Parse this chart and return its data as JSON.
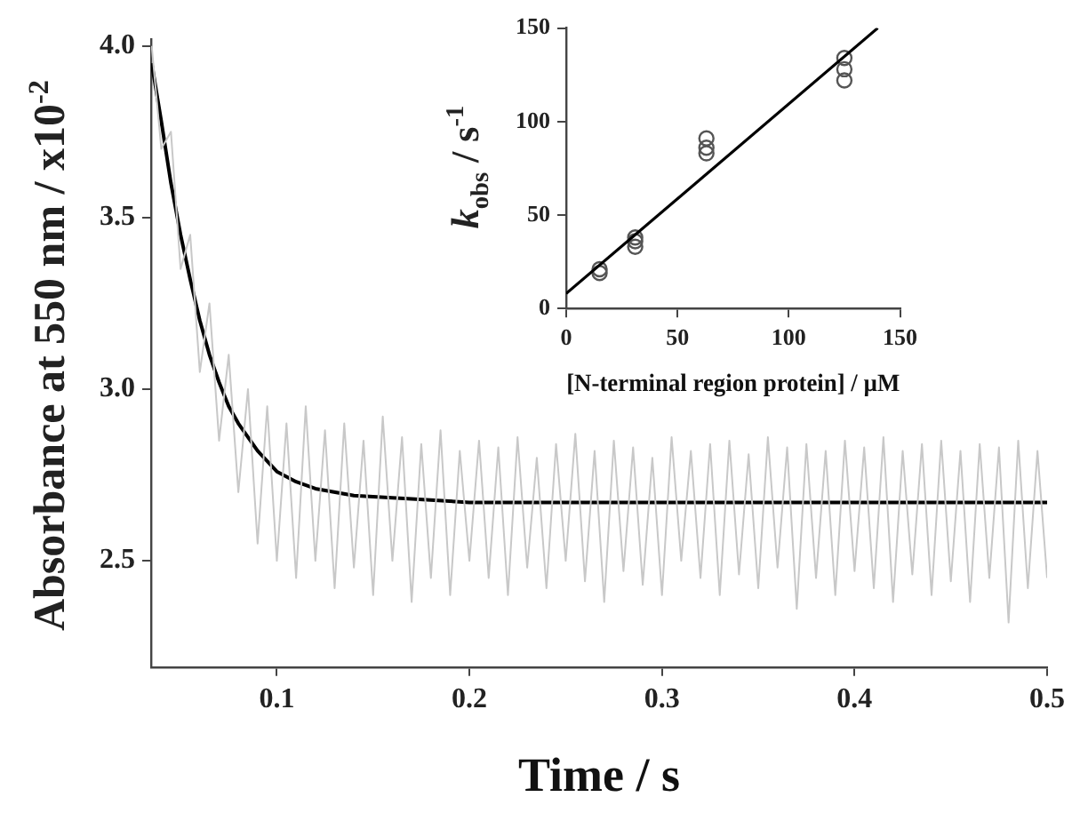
{
  "chart_data": [
    {
      "type": "line",
      "xlabel": "Time / s",
      "ylabel": "Absorbance at 550 nm / x10$^{-2}$",
      "xlim": [
        0.0347,
        0.5
      ],
      "xticks": [
        0.1,
        0.2,
        0.3,
        0.4,
        0.5
      ],
      "ylim": [
        2.19,
        4.02
      ],
      "yticks": [
        {
          "value": 2.5,
          "label": "2.5"
        },
        {
          "value": 3,
          "label": "3.0"
        },
        {
          "value": 3.5,
          "label": "3.5"
        },
        {
          "value": 4,
          "label": "4.0"
        }
      ],
      "grid": false,
      "legend": false,
      "marker": "none",
      "line_style": "solid",
      "series": [
        {
          "color": "#c8c8c8",
          "x": [
            0.035,
            0.04,
            0.045,
            0.05,
            0.055,
            0.06,
            0.065,
            0.07,
            0.075,
            0.08,
            0.085,
            0.09,
            0.095,
            0.1,
            0.105,
            0.11,
            0.115,
            0.12,
            0.125,
            0.13,
            0.135,
            0.14,
            0.145,
            0.15,
            0.155,
            0.16,
            0.165,
            0.17,
            0.175,
            0.18,
            0.185,
            0.19,
            0.195,
            0.2,
            0.205,
            0.21,
            0.215,
            0.22,
            0.225,
            0.23,
            0.235,
            0.24,
            0.245,
            0.25,
            0.255,
            0.26,
            0.265,
            0.27,
            0.275,
            0.28,
            0.285,
            0.29,
            0.295,
            0.3,
            0.305,
            0.31,
            0.315,
            0.32,
            0.325,
            0.33,
            0.335,
            0.34,
            0.345,
            0.35,
            0.355,
            0.36,
            0.365,
            0.37,
            0.375,
            0.38,
            0.385,
            0.39,
            0.395,
            0.4,
            0.405,
            0.41,
            0.415,
            0.42,
            0.425,
            0.43,
            0.435,
            0.44,
            0.445,
            0.45,
            0.455,
            0.46,
            0.465,
            0.47,
            0.475,
            0.48,
            0.485,
            0.49,
            0.495,
            0.5
          ],
          "values": [
            4.0,
            3.7,
            3.75,
            3.35,
            3.45,
            3.05,
            3.25,
            2.85,
            3.1,
            2.7,
            3.0,
            2.55,
            2.95,
            2.5,
            2.9,
            2.45,
            2.95,
            2.5,
            2.88,
            2.42,
            2.9,
            2.48,
            2.85,
            2.4,
            2.92,
            2.5,
            2.86,
            2.38,
            2.84,
            2.45,
            2.88,
            2.4,
            2.82,
            2.5,
            2.85,
            2.45,
            2.83,
            2.4,
            2.86,
            2.48,
            2.8,
            2.42,
            2.84,
            2.5,
            2.87,
            2.44,
            2.82,
            2.38,
            2.85,
            2.47,
            2.83,
            2.43,
            2.8,
            2.4,
            2.86,
            2.5,
            2.82,
            2.45,
            2.84,
            2.4,
            2.85,
            2.46,
            2.81,
            2.42,
            2.86,
            2.48,
            2.83,
            2.36,
            2.84,
            2.45,
            2.82,
            2.4,
            2.85,
            2.47,
            2.83,
            2.42,
            2.86,
            2.38,
            2.82,
            2.46,
            2.84,
            2.4,
            2.85,
            2.44,
            2.82,
            2.38,
            2.84,
            2.45,
            2.83,
            2.32,
            2.85,
            2.42,
            2.82,
            2.45
          ]
        },
        {
          "color": "#000000",
          "x": [
            0.035,
            0.04,
            0.045,
            0.05,
            0.055,
            0.06,
            0.065,
            0.07,
            0.075,
            0.08,
            0.09,
            0.1,
            0.11,
            0.12,
            0.14,
            0.17,
            0.2,
            0.3,
            0.4,
            0.5
          ],
          "values": [
            3.95,
            3.78,
            3.6,
            3.45,
            3.32,
            3.2,
            3.1,
            3.02,
            2.95,
            2.9,
            2.82,
            2.76,
            2.73,
            2.71,
            2.69,
            2.68,
            2.67,
            2.67,
            2.67,
            2.67
          ]
        }
      ]
    },
    {
      "type": "scatter",
      "xlabel": "[N-terminal region protein] / µM",
      "ylabel": "k$_{obs}$ / s$^{-1}$",
      "xlim": [
        0,
        150
      ],
      "xticks": [
        0,
        50,
        100,
        150
      ],
      "ylim": [
        0,
        150
      ],
      "yticks": [
        0,
        50,
        100,
        150
      ],
      "grid": false,
      "legend": false,
      "marker": "circle",
      "series": [
        {
          "color": "#555555",
          "x": [
            15,
            15,
            31,
            31,
            31,
            63,
            63,
            63,
            125,
            125,
            125
          ],
          "values": [
            19,
            21,
            33,
            36,
            38,
            83,
            86,
            91,
            122,
            128,
            134
          ]
        },
        {
          "type": "line",
          "color": "#000000",
          "marker": "none",
          "line_style": "solid",
          "x": [
            0,
            140
          ],
          "values": [
            8,
            150
          ]
        }
      ]
    }
  ]
}
